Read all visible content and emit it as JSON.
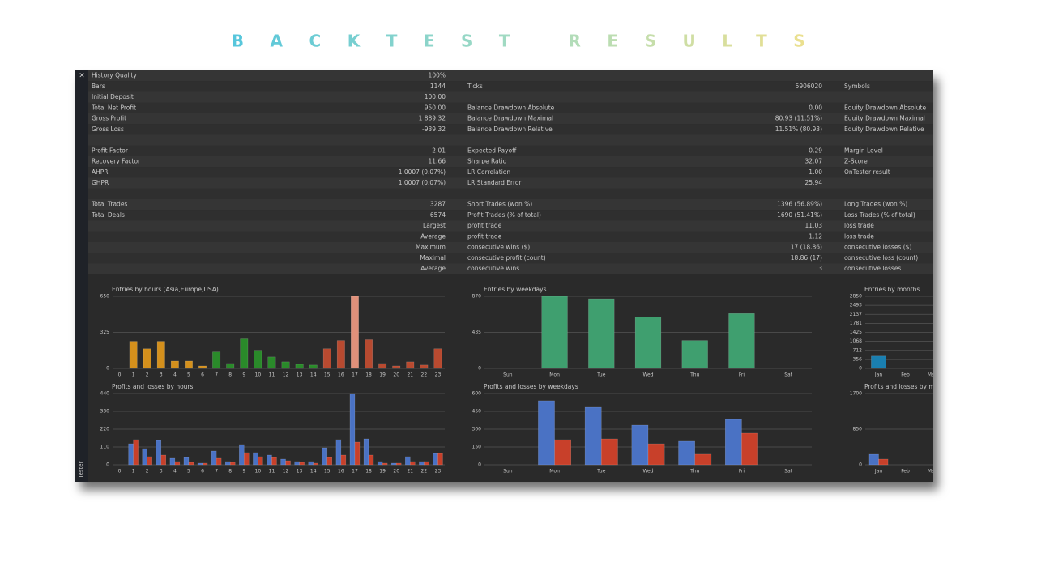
{
  "title": "BACKTEST RESULTS",
  "panel": {
    "close": "×",
    "tab": "Tester"
  },
  "stats": {
    "rows": [
      [
        "History Quality",
        "100%",
        null,
        null,
        null
      ],
      [
        "Bars",
        "1144",
        "Ticks",
        "5906020",
        "Symbols"
      ],
      [
        "Initial Deposit",
        "100.00",
        null,
        null,
        null
      ],
      [
        "Total Net Profit",
        "950.00",
        "Balance Drawdown Absolute",
        "0.00",
        "Equity Drawdown Absolute"
      ],
      [
        "Gross Profit",
        "1 889.32",
        "Balance Drawdown Maximal",
        "80.93 (11.51%)",
        "Equity Drawdown Maximal"
      ],
      [
        "Gross Loss",
        "-939.32",
        "Balance Drawdown Relative",
        "11.51% (80.93)",
        "Equity Drawdown Relative"
      ],
      [
        null,
        null,
        null,
        null,
        null
      ],
      [
        "Profit Factor",
        "2.01",
        "Expected Payoff",
        "0.29",
        "Margin Level"
      ],
      [
        "Recovery Factor",
        "11.66",
        "Sharpe Ratio",
        "32.07",
        "Z-Score"
      ],
      [
        "AHPR",
        "1.0007 (0.07%)",
        "LR Correlation",
        "1.00",
        "OnTester result"
      ],
      [
        "GHPR",
        "1.0007 (0.07%)",
        "LR Standard Error",
        "25.94",
        null
      ],
      [
        null,
        null,
        null,
        null,
        null
      ],
      [
        "Total Trades",
        "3287",
        "Short Trades (won %)",
        "1396 (56.89%)",
        "Long Trades (won %)"
      ],
      [
        "Total Deals",
        "6574",
        "Profit Trades (% of total)",
        "1690 (51.41%)",
        "Loss Trades (% of total)"
      ],
      [
        null,
        "Largest",
        "profit trade",
        "11.03",
        "loss trade"
      ],
      [
        null,
        "Average",
        "profit trade",
        "1.12",
        "loss trade"
      ],
      [
        null,
        "Maximum",
        "consecutive wins ($)",
        "17 (18.86)",
        "consecutive losses ($)"
      ],
      [
        null,
        "Maximal",
        "consecutive profit (count)",
        "18.86 (17)",
        "consecutive loss (count)"
      ],
      [
        null,
        "Average",
        "consecutive wins",
        "3",
        "consecutive losses"
      ]
    ]
  },
  "chart_data": [
    {
      "type": "bar",
      "title": "Entries by hours (Asia,Europe,USA)",
      "categories": [
        "0",
        "1",
        "2",
        "3",
        "4",
        "5",
        "6",
        "7",
        "8",
        "9",
        "10",
        "11",
        "12",
        "13",
        "14",
        "15",
        "16",
        "17",
        "18",
        "19",
        "20",
        "21",
        "22",
        "23"
      ],
      "values": [
        0,
        244,
        177,
        244,
        66,
        66,
        22,
        148,
        44,
        266,
        163,
        103,
        59,
        37,
        30,
        177,
        251,
        650,
        259,
        44,
        22,
        59,
        30,
        177
      ],
      "colors": [
        "#d4901c",
        "#d4901c",
        "#d4901c",
        "#d4901c",
        "#d4901c",
        "#d4901c",
        "#d4901c",
        "#2a8a2a",
        "#2a8a2a",
        "#2a8a2a",
        "#2a8a2a",
        "#2a8a2a",
        "#2a8a2a",
        "#2a8a2a",
        "#2a8a2a",
        "#b84a30",
        "#b84a30",
        "#e0907a",
        "#b84a30",
        "#b84a30",
        "#b84a30",
        "#b84a30",
        "#b84a30",
        "#b84a30"
      ],
      "ylim": [
        0,
        650
      ],
      "yticks": [
        0,
        325,
        650
      ]
    },
    {
      "type": "bar",
      "title": "Entries by weekdays",
      "categories": [
        "Sun",
        "Mon",
        "Tue",
        "Wed",
        "Thu",
        "Fri",
        "Sat"
      ],
      "values": [
        0,
        870,
        840,
        623,
        336,
        662,
        0
      ],
      "color": "#3f9f6f",
      "ylim": [
        0,
        870
      ],
      "yticks": [
        0,
        435,
        870
      ]
    },
    {
      "type": "bar",
      "title": "Entries by months",
      "categories": [
        "Jan",
        "Feb",
        "Mar"
      ],
      "values": [
        486,
        0,
        0
      ],
      "color": "#1a7fb0",
      "ylim": [
        0,
        2850
      ],
      "yticks": [
        0,
        356,
        712,
        1068,
        1425,
        1781,
        2137,
        2493,
        2850
      ]
    },
    {
      "type": "bar",
      "title": "Profits and losses by hours",
      "categories": [
        "0",
        "1",
        "2",
        "3",
        "4",
        "5",
        "6",
        "7",
        "8",
        "9",
        "10",
        "11",
        "12",
        "13",
        "14",
        "15",
        "16",
        "17",
        "18",
        "19",
        "20",
        "21",
        "22",
        "23"
      ],
      "series": [
        {
          "color": "#4a72c4",
          "values": [
            0,
            130,
            100,
            150,
            40,
            45,
            10,
            85,
            20,
            125,
            75,
            60,
            35,
            20,
            20,
            105,
            155,
            440,
            160,
            20,
            10,
            50,
            20,
            70
          ]
        },
        {
          "color": "#c8402a",
          "values": [
            0,
            155,
            50,
            60,
            20,
            15,
            10,
            40,
            15,
            75,
            50,
            45,
            25,
            15,
            10,
            45,
            60,
            140,
            60,
            10,
            10,
            20,
            20,
            70
          ]
        }
      ],
      "ylim": [
        0,
        440
      ],
      "yticks": [
        0,
        110,
        220,
        330,
        440
      ]
    },
    {
      "type": "bar",
      "title": "Profits and losses by weekdays",
      "categories": [
        "Sun",
        "Mon",
        "Tue",
        "Wed",
        "Thu",
        "Fri",
        "Sat"
      ],
      "series": [
        {
          "color": "#4a72c4",
          "values": [
            0,
            539,
            484,
            334,
            198,
            382,
            0
          ]
        },
        {
          "color": "#c8402a",
          "values": [
            0,
            211,
            218,
            177,
            89,
            266,
            0
          ]
        }
      ],
      "ylim": [
        0,
        600
      ],
      "yticks": [
        0,
        150,
        300,
        450,
        600
      ]
    },
    {
      "type": "bar",
      "title": "Profits and losses by months",
      "categories": [
        "Jan",
        "Feb",
        "Mar"
      ],
      "series": [
        {
          "color": "#4a72c4",
          "values": [
            251,
            0,
            0
          ]
        },
        {
          "color": "#c8402a",
          "values": [
            135,
            0,
            0
          ]
        }
      ],
      "ylim": [
        0,
        1700
      ],
      "yticks": [
        0,
        850,
        1700
      ]
    }
  ]
}
